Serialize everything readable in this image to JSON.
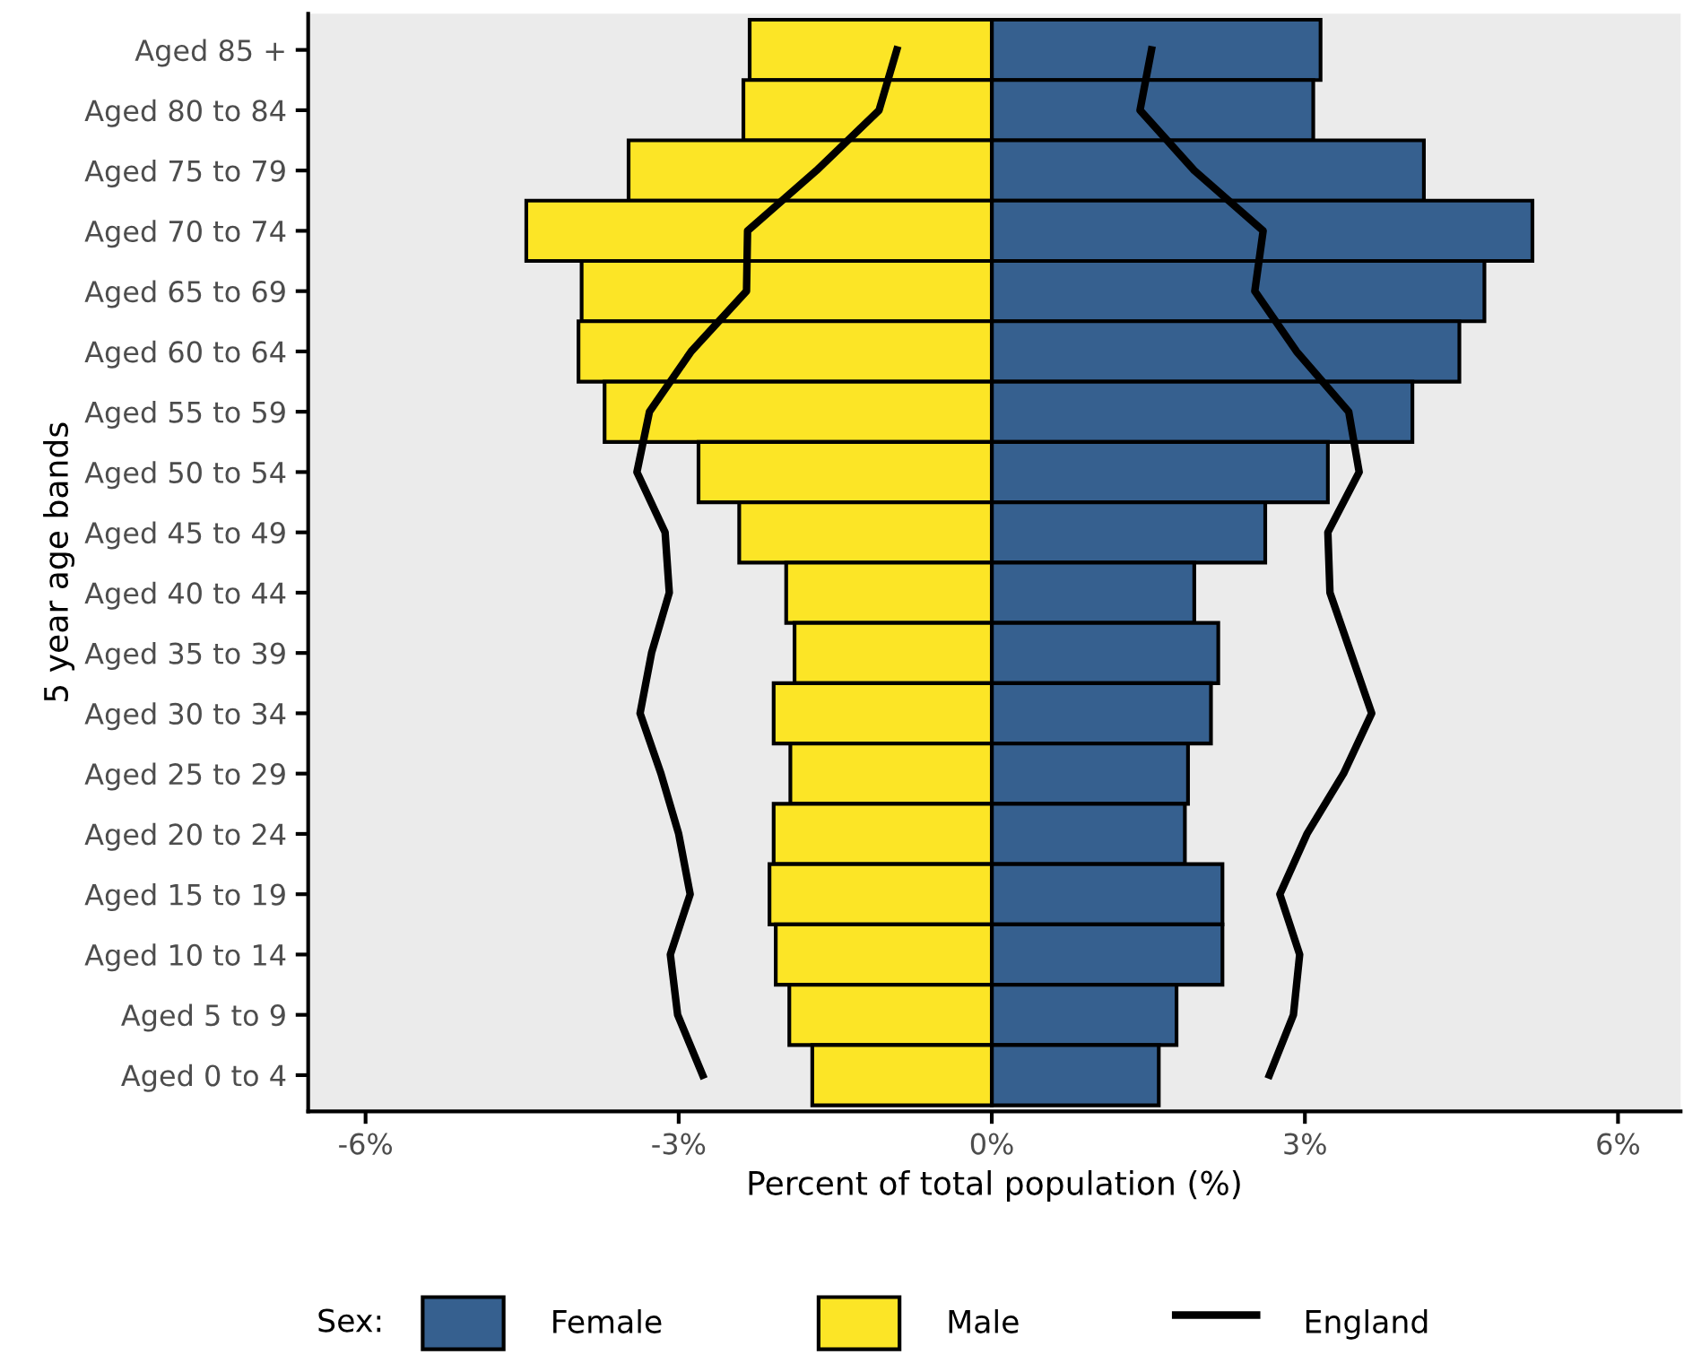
{
  "chart_data": {
    "type": "bar",
    "orientation": "horizontal",
    "xlabel": "Percent of total population (%)",
    "ylabel": "5 year age bands",
    "legend_title": "Sex:",
    "categories": [
      "Aged 85 +",
      "Aged 80 to 84",
      "Aged 75 to 79",
      "Aged 70 to 74",
      "Aged 65 to 69",
      "Aged 60 to 64",
      "Aged 55 to 59",
      "Aged 50 to 54",
      "Aged 45 to 49",
      "Aged 40 to 44",
      "Aged 35 to 39",
      "Aged 30 to 34",
      "Aged 25 to 29",
      "Aged 20 to 24",
      "Aged 15 to 19",
      "Aged 10 to 14",
      "Aged 5 to 9",
      "Aged 0 to 4"
    ],
    "series": [
      {
        "name": "Female",
        "color": "#36608f",
        "values": [
          3.15,
          3.08,
          4.14,
          5.18,
          4.72,
          4.48,
          4.03,
          3.22,
          2.62,
          1.94,
          2.17,
          2.1,
          1.88,
          1.85,
          2.21,
          2.21,
          1.77,
          1.6
        ]
      },
      {
        "name": "Male",
        "color": "#fce526",
        "values": [
          -2.32,
          -2.38,
          -3.48,
          -4.46,
          -3.93,
          -3.96,
          -3.71,
          -2.81,
          -2.42,
          -1.97,
          -1.89,
          -2.09,
          -1.93,
          -2.09,
          -2.13,
          -2.07,
          -1.94,
          -1.72
        ]
      },
      {
        "name": "England",
        "type": "line",
        "color": "#000000",
        "values": [
          1.53,
          1.42,
          1.94,
          2.6,
          2.52,
          2.92,
          3.42,
          3.52,
          3.22,
          3.24,
          3.44,
          3.64,
          3.37,
          3.02,
          2.76,
          2.95,
          2.89,
          2.66
        ]
      },
      {
        "type": "line",
        "color": "#000000",
        "values": [
          -0.91,
          -1.08,
          -1.68,
          -2.34,
          -2.35,
          -2.88,
          -3.28,
          -3.4,
          -3.13,
          -3.09,
          -3.26,
          -3.37,
          -3.17,
          -3.0,
          -2.89,
          -3.08,
          -3.01,
          -2.77
        ]
      }
    ],
    "xlim": [
      -6.55,
      6.6
    ],
    "xticks": [
      {
        "value": -6,
        "label": "-6%"
      },
      {
        "value": -3,
        "label": "-3%"
      },
      {
        "value": 0,
        "label": "0%"
      },
      {
        "value": 3,
        "label": "3%"
      },
      {
        "value": 6,
        "label": "6%"
      }
    ],
    "stacked": true,
    "grid": false,
    "legend": "bottom"
  }
}
